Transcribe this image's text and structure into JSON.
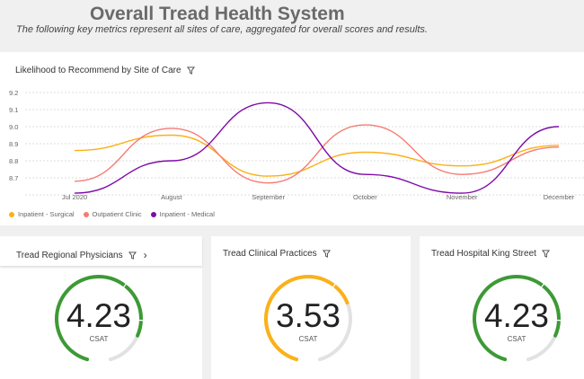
{
  "header": {
    "title": "Overall Tread Health System",
    "subtitle": "The following key metrics represent all sites of care, aggregated for overall scores and results."
  },
  "chart_data": {
    "type": "line",
    "title": "Likelihood to Recommend by Site of Care",
    "categories": [
      "Jul 2020",
      "August",
      "September",
      "October",
      "November",
      "December"
    ],
    "yticks": [
      "9.2",
      "9.1",
      "9.0",
      "8.9",
      "8.8",
      "8.7"
    ],
    "ylim": [
      8.65,
      9.2
    ],
    "grid": true,
    "legend_position": "bottom-left",
    "series": [
      {
        "name": "Inpatient - Surgical",
        "color": "#fbb117",
        "values": [
          8.86,
          8.95,
          8.71,
          8.85,
          8.77,
          8.89
        ]
      },
      {
        "name": "Outpatient Clinic",
        "color": "#f77b72",
        "values": [
          8.68,
          8.99,
          8.67,
          9.01,
          8.72,
          8.88
        ]
      },
      {
        "name": "Inpatient - Medical",
        "color": "#7e0aa8",
        "values": [
          8.61,
          8.8,
          9.14,
          8.72,
          8.61,
          9.0
        ]
      }
    ]
  },
  "gauges": [
    {
      "title": "Tread Regional Physicians",
      "value": "4.23",
      "fraction": 0.846,
      "label": "CSAT",
      "color": "#3c9a35",
      "has_chevron": true,
      "chevron": "›"
    },
    {
      "title": "Tread Clinical Practices",
      "value": "3.53",
      "fraction": 0.706,
      "label": "CSAT",
      "color": "#fbb117"
    },
    {
      "title": "Tread Hospital King Street",
      "value": "4.23",
      "fraction": 0.846,
      "label": "CSAT",
      "color": "#3c9a35"
    }
  ],
  "icons": {
    "filter": "filter-icon",
    "chevron": "chevron-right-icon"
  }
}
